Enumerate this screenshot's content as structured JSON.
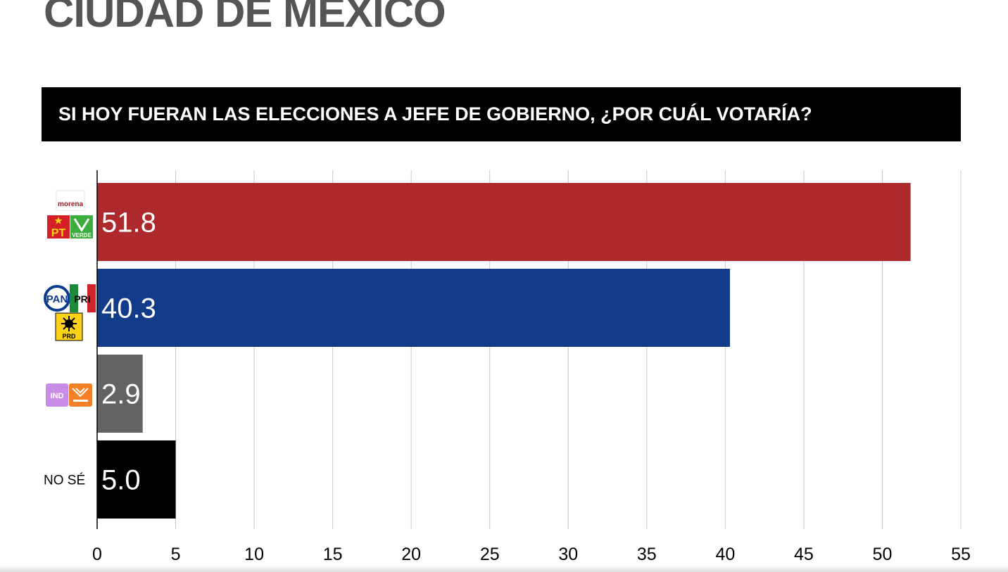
{
  "page": {
    "title": "CIUDAD DE MEXICO",
    "question": "SI HOY FUERAN LAS ELECCIONES A JEFE DE GOBIERNO, ¿POR CUÁL VOTARÍA?"
  },
  "chart_data": {
    "type": "bar",
    "orientation": "horizontal",
    "title": "SI HOY FUERAN LAS ELECCIONES A JEFE DE GOBIERNO, ¿POR CUÁL VOTARÍA?",
    "categories": [
      "MORENA-PT-VERDE",
      "PAN-PRI-PRD",
      "IND-MOVIMIENTO CIUDADANO",
      "NO SÉ"
    ],
    "category_display": [
      "",
      "",
      "",
      "NO SÉ"
    ],
    "values": [
      51.8,
      40.3,
      2.9,
      5.0
    ],
    "value_labels": [
      "51.8",
      "40.3",
      "2.9",
      "5.0"
    ],
    "colors": [
      "#ad292c",
      "#123b8a",
      "#636363",
      "#000000"
    ],
    "xlim": [
      0,
      55
    ],
    "xticks": [
      0,
      5,
      10,
      15,
      20,
      25,
      30,
      35,
      40,
      45,
      50,
      55
    ],
    "grid": "vertical",
    "legend": "none",
    "category_logos": [
      [
        "morena-logo",
        "pt-logo",
        "verde-logo"
      ],
      [
        "pan-logo",
        "pri-logo",
        "prd-logo"
      ],
      [
        "independiente-logo",
        "movimiento-ciudadano-logo"
      ],
      []
    ],
    "logo_texts": {
      "morena": "morena",
      "pt": "PT",
      "verde": "VERDE",
      "pan": "PAN",
      "pri": "PRI",
      "prd": "PRD",
      "ind": "IND"
    }
  }
}
